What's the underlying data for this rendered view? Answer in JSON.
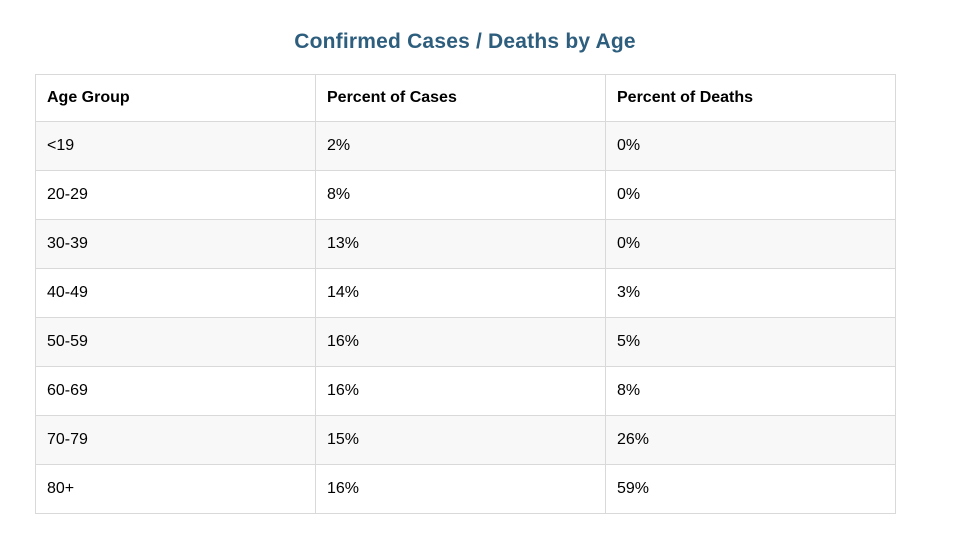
{
  "title": "Confirmed Cases / Deaths by Age",
  "colors": {
    "title_text": "#2e5e7e",
    "outer_border": "#3a3a3a",
    "inner_border": "#d9d9d9",
    "stripe_row_bg": "#f8f8f8",
    "cell_text": "#000000"
  },
  "table": {
    "headers": [
      "Age Group",
      "Percent of Cases",
      "Percent of Deaths"
    ],
    "rows": [
      [
        "<19",
        "2%",
        "0%"
      ],
      [
        "20-29",
        "8%",
        "0%"
      ],
      [
        "30-39",
        "13%",
        "0%"
      ],
      [
        "40-49",
        "14%",
        "3%"
      ],
      [
        "50-59",
        "16%",
        "5%"
      ],
      [
        "60-69",
        "16%",
        "8%"
      ],
      [
        "70-79",
        "15%",
        "26%"
      ],
      [
        "80+",
        "16%",
        "59%"
      ]
    ]
  },
  "chart_data": {
    "type": "table",
    "title": "Confirmed Cases / Deaths by Age",
    "categories": [
      "<19",
      "20-29",
      "30-39",
      "40-49",
      "50-59",
      "60-69",
      "70-79",
      "80+"
    ],
    "series": [
      {
        "name": "Percent of Cases",
        "values": [
          2,
          8,
          13,
          14,
          16,
          16,
          15,
          16
        ],
        "unit": "%"
      },
      {
        "name": "Percent of Deaths",
        "values": [
          0,
          0,
          0,
          3,
          5,
          8,
          26,
          59
        ],
        "unit": "%"
      }
    ],
    "layout": {
      "grid": true,
      "legend_position": "none",
      "striped_rows": true
    }
  }
}
